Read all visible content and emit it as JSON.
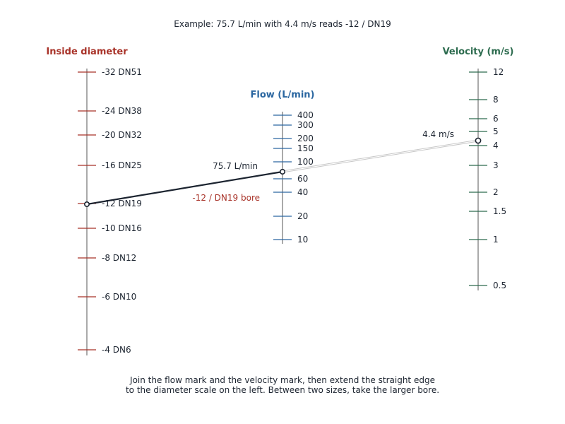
{
  "example_text": "Example: 75.7 L/min with 4.4 m/s reads -12 / DN19",
  "instructions": [
    "Join the flow mark and the velocity mark, then extend the straight edge",
    "to the diameter scale on the left. Between two sizes, take the larger bore."
  ],
  "colors": {
    "diameter": "#a83228",
    "flow": "#2a66a0",
    "velocity": "#2c6b4e",
    "axis": "#555555",
    "line": "#1c2430"
  },
  "scales": {
    "diameter": {
      "title": "Inside diameter",
      "ticks": [
        {
          "label": "-32  DN51",
          "value": 51
        },
        {
          "label": "-24  DN38",
          "value": 38
        },
        {
          "label": "-20  DN32",
          "value": 32
        },
        {
          "label": "-16  DN25",
          "value": 25
        },
        {
          "label": "-12  DN19",
          "value": 19
        },
        {
          "label": "-10  DN16",
          "value": 16
        },
        {
          "label": "-8  DN12",
          "value": 12
        },
        {
          "label": "-6  DN10",
          "value": 10
        },
        {
          "label": "-4  DN6",
          "value": 6
        }
      ]
    },
    "flow": {
      "title": "Flow (L/min)",
      "ticks": [
        "400",
        "300",
        "200",
        "150",
        "100",
        "60",
        "40",
        "20",
        "10"
      ]
    },
    "velocity": {
      "title": "Velocity (m/s)",
      "ticks": [
        "12",
        "8",
        "6",
        "5",
        "4",
        "3",
        "2",
        "1.5",
        "1",
        "0.5"
      ]
    }
  },
  "example": {
    "flow_label": "75.7 L/min",
    "flow_value": 75.7,
    "velocity_label": "4.4 m/s",
    "velocity_value": 4.4,
    "result_label": "-12 / DN19 bore",
    "result_value": "-12 DN19"
  }
}
